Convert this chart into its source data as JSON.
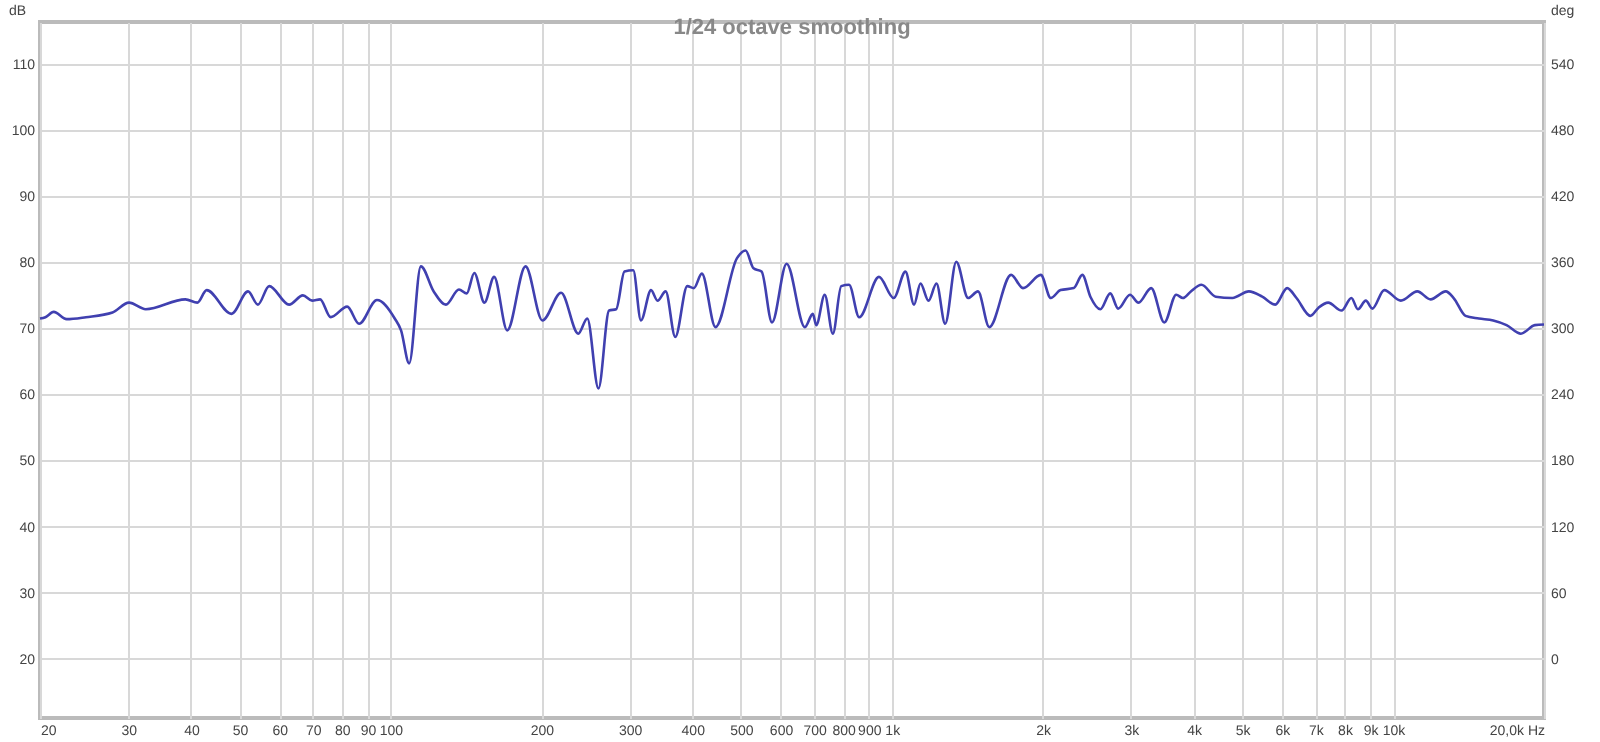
{
  "chart_data": {
    "type": "line",
    "title": "1/24 octave smoothing",
    "ylabel": "dB",
    "y2label": "deg",
    "log": "x",
    "grid": true,
    "xlim": [
      20,
      20000
    ],
    "xticks": [
      20,
      30,
      40,
      50,
      60,
      70,
      80,
      90,
      100,
      200,
      300,
      400,
      500,
      600,
      700,
      800,
      900,
      {
        "value": 1000,
        "label": "1k"
      },
      {
        "value": 2000,
        "label": "2k"
      },
      {
        "value": 3000,
        "label": "3k"
      },
      {
        "value": 4000,
        "label": "4k"
      },
      {
        "value": 5000,
        "label": "5k"
      },
      {
        "value": 6000,
        "label": "6k"
      },
      {
        "value": 7000,
        "label": "7k"
      },
      {
        "value": 8000,
        "label": "8k"
      },
      {
        "value": 9000,
        "label": "9k"
      },
      {
        "value": 10000,
        "label": "10k"
      },
      {
        "value": 20000,
        "label": "20,0k Hz"
      }
    ],
    "ylim": [
      11,
      116.4
    ],
    "yticks": [
      20,
      30,
      40,
      50,
      60,
      70,
      80,
      90,
      100,
      110
    ],
    "y2lim": [
      -54,
      578.4
    ],
    "y2ticks": [
      0,
      60,
      120,
      180,
      240,
      300,
      360,
      420,
      480,
      540
    ],
    "series": [
      {
        "color": "#4040b0",
        "x": [
          20,
          20.5,
          21.3,
          22.6,
          24.7,
          27.9,
          30.1,
          32.5,
          39.0,
          41.2,
          43.0,
          48.2,
          52.0,
          54.4,
          57.3,
          62.8,
          66.9,
          69.8,
          72.4,
          76.0,
          82.0,
          86.6,
          94.0,
          102,
          105,
          109,
          115,
          122,
          129,
          137,
          142,
          147,
          154,
          161,
          171,
          186,
          201,
          219,
          237,
          247,
          260,
          273,
          282,
          293,
          305,
          316,
          331,
          341,
          354,
          370,
          391,
          403,
          418,
          445,
          491,
          511,
          530,
          550,
          577,
          617,
          671,
          696,
          707,
          735,
          763,
          793,
          822,
          861,
          943,
          1009,
          1065,
          1108,
          1141,
          1184,
          1228,
          1278,
          1345,
          1420,
          1486,
          1565,
          1730,
          1827,
          1983,
          2076,
          2171,
          2307,
          2400,
          2490,
          2607,
          2728,
          2829,
          2987,
          3106,
          3292,
          3497,
          3693,
          3808,
          3950,
          4146,
          4428,
          4780,
          5157,
          5482,
          5820,
          6148,
          6417,
          6840,
          7093,
          7424,
          7891,
          8257,
          8508,
          8822,
          9093,
          9602,
          10364,
          11178,
          11879,
          12736,
          13207,
          13948,
          14826,
          15840,
          16838,
          17992,
          19180,
          20000
        ],
        "values": [
          71.5,
          71.7,
          72.5,
          71.4,
          71.7,
          72.4,
          73.9,
          72.9,
          74.4,
          73.9,
          75.8,
          72.2,
          75.6,
          73.6,
          76.4,
          73.6,
          75.0,
          74.2,
          74.4,
          71.7,
          73.3,
          70.7,
          74.3,
          71.5,
          69.7,
          64.7,
          79.4,
          75.6,
          73.6,
          75.9,
          75.3,
          78.4,
          73.9,
          77.8,
          69.7,
          79.4,
          71.2,
          75.4,
          69.2,
          71.5,
          60.9,
          72.7,
          72.9,
          78.6,
          78.8,
          71.2,
          75.8,
          74.2,
          75.6,
          68.7,
          76.4,
          76.1,
          78.3,
          70.2,
          80.6,
          81.8,
          79.1,
          78.6,
          70.9,
          79.8,
          70.2,
          72.2,
          70.5,
          75.1,
          69.2,
          76.4,
          76.6,
          71.7,
          77.8,
          74.6,
          78.6,
          73.6,
          76.8,
          74.2,
          76.8,
          70.7,
          80.1,
          74.6,
          75.6,
          70.2,
          78.1,
          76.1,
          78.1,
          74.6,
          75.8,
          76.1,
          78.1,
          74.8,
          72.9,
          75.3,
          73.0,
          75.1,
          73.9,
          76.1,
          70.9,
          75.1,
          74.6,
          75.6,
          76.6,
          74.8,
          74.6,
          75.6,
          74.8,
          73.6,
          76.1,
          74.6,
          71.9,
          73.1,
          73.9,
          72.7,
          74.6,
          72.9,
          74.2,
          73.0,
          75.8,
          74.2,
          75.6,
          74.4,
          75.6,
          74.6,
          71.9,
          71.5,
          71.2,
          70.5,
          69.2,
          70.5,
          70.6
        ]
      }
    ]
  }
}
